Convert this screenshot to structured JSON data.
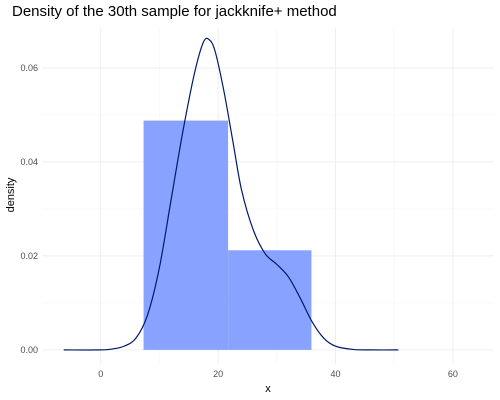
{
  "chart_data": {
    "type": "histogram+density",
    "title": "Density of the 30th sample for jackknife+ method",
    "xlabel": "x",
    "ylabel": "density",
    "xlim": [
      -10,
      67
    ],
    "ylim": [
      -0.003,
      0.0685
    ],
    "x_ticks": [
      0,
      20,
      40,
      60
    ],
    "x_tick_labels": [
      "0",
      "20",
      "40",
      "60"
    ],
    "y_ticks": [
      0.0,
      0.02,
      0.04,
      0.06
    ],
    "y_tick_labels": [
      "0.00",
      "0.02",
      "0.04",
      "0.06"
    ],
    "grid": true,
    "histogram": {
      "fill_color": "#88a3ff",
      "bins": [
        {
          "x0": 7.3,
          "x1": 21.7,
          "density": 0.0488
        },
        {
          "x0": 21.7,
          "x1": 35.9,
          "density": 0.0212
        }
      ]
    },
    "density_curve": {
      "line_color": "#001a66",
      "points": [
        [
          -6.3,
          0.0
        ],
        [
          0,
          0.0
        ],
        [
          2,
          0.0002
        ],
        [
          4,
          0.0008
        ],
        [
          6,
          0.0025
        ],
        [
          8,
          0.0075
        ],
        [
          10,
          0.0175
        ],
        [
          12,
          0.032
        ],
        [
          14,
          0.0465
        ],
        [
          16,
          0.059
        ],
        [
          17.5,
          0.0655
        ],
        [
          18.5,
          0.066
        ],
        [
          19.5,
          0.0635
        ],
        [
          21,
          0.055
        ],
        [
          22.5,
          0.0445
        ],
        [
          24,
          0.034
        ],
        [
          26,
          0.0255
        ],
        [
          28,
          0.0205
        ],
        [
          30,
          0.0182
        ],
        [
          32,
          0.0155
        ],
        [
          34,
          0.011
        ],
        [
          36,
          0.006
        ],
        [
          38,
          0.0025
        ],
        [
          40,
          0.0008
        ],
        [
          43,
          0.0001
        ],
        [
          46,
          0.0
        ],
        [
          50.7,
          0.0
        ]
      ]
    }
  }
}
